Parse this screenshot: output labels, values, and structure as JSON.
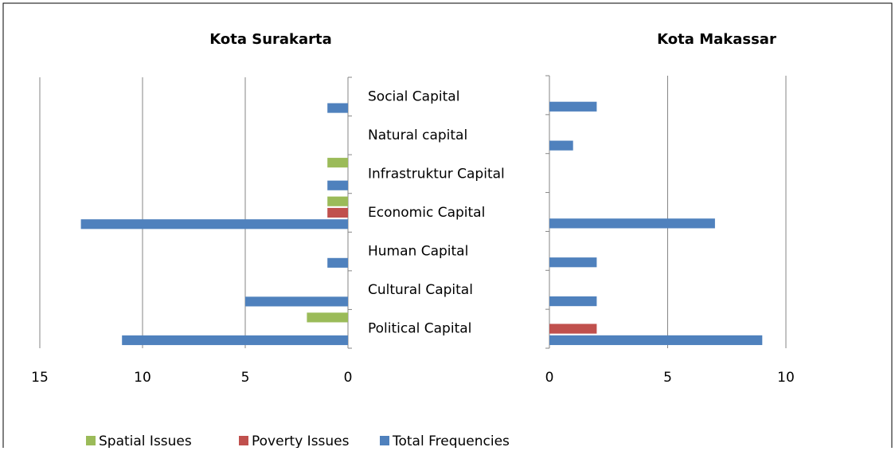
{
  "chart_data": [
    {
      "type": "bar",
      "title": "Kota Surakarta",
      "reversed": true,
      "categories": [
        "Social Capital",
        "Natural capital",
        "Infrastruktur Capital",
        "Economic Capital",
        "Human Capital",
        "Cultural Capital",
        "Political Capital"
      ],
      "series": [
        {
          "name": "Spatial Issues",
          "color": "#9bbb59",
          "values": [
            0,
            0,
            1,
            1,
            0,
            0,
            2
          ]
        },
        {
          "name": "Poverty Issues",
          "color": "#c0504d",
          "values": [
            0,
            0,
            0,
            1,
            0,
            0,
            0
          ]
        },
        {
          "name": "Total Frequencies",
          "color": "#4f81bd",
          "values": [
            1,
            0,
            1,
            13,
            1,
            5,
            11
          ]
        }
      ],
      "xlim": [
        0,
        15
      ],
      "xticks": [
        0,
        5,
        10,
        15
      ],
      "grid": true
    },
    {
      "type": "bar",
      "title": "Kota Makassar",
      "reversed": false,
      "series": [
        {
          "color": "#9bbb59",
          "values": [
            0,
            0,
            0,
            0,
            0,
            0,
            0
          ]
        },
        {
          "color": "#c0504d",
          "values": [
            0,
            0,
            0,
            0,
            0,
            0,
            2
          ]
        },
        {
          "color": "#4f81bd",
          "values": [
            2,
            1,
            0,
            7,
            2,
            2,
            9
          ]
        }
      ],
      "xlim": [
        0,
        10
      ],
      "xticks": [
        0,
        5,
        10
      ],
      "grid": true
    }
  ]
}
